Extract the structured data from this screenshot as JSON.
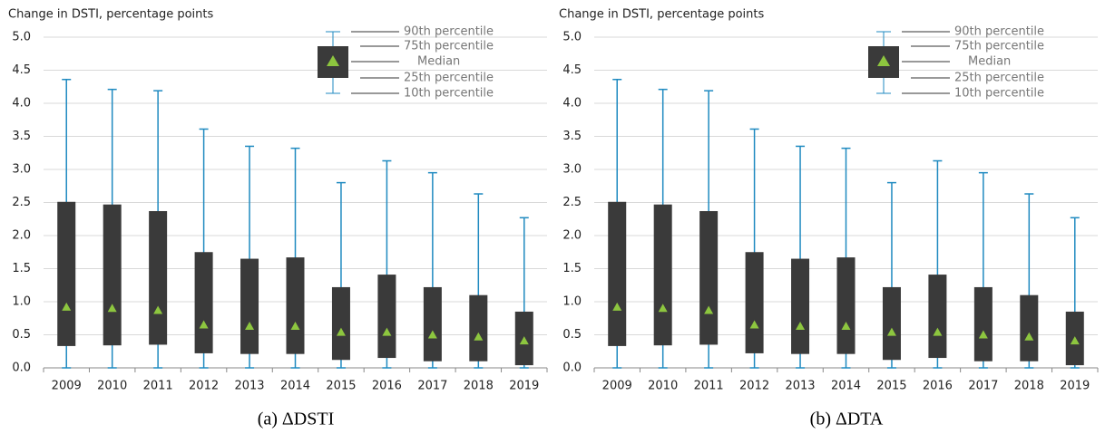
{
  "chart_data": [
    {
      "type": "box",
      "caption": "(a) ΔDSTI",
      "ylabel": "Change in DSTI, percentage points",
      "categories": [
        "2009",
        "2010",
        "2011",
        "2012",
        "2013",
        "2014",
        "2015",
        "2016",
        "2017",
        "2018",
        "2019"
      ],
      "p10": [
        0,
        0,
        0,
        0,
        0,
        0,
        0,
        0,
        0,
        0,
        0
      ],
      "p25": [
        0.33,
        0.34,
        0.35,
        0.22,
        0.21,
        0.21,
        0.12,
        0.15,
        0.1,
        0.1,
        0.04
      ],
      "median": [
        0.92,
        0.9,
        0.87,
        0.65,
        0.63,
        0.63,
        0.54,
        0.54,
        0.5,
        0.47,
        0.41
      ],
      "p75": [
        2.51,
        2.47,
        2.37,
        1.75,
        1.65,
        1.67,
        1.22,
        1.41,
        1.22,
        1.1,
        0.85
      ],
      "p90": [
        4.36,
        4.21,
        4.19,
        3.61,
        3.35,
        3.32,
        2.8,
        3.13,
        2.95,
        2.63,
        2.27
      ],
      "ylim": [
        0,
        5
      ],
      "yticks": [
        {
          "value": 0,
          "label": "0.0"
        },
        {
          "value": 0.5,
          "label": "0.5"
        },
        {
          "value": 1,
          "label": "1.0"
        },
        {
          "value": 1.5,
          "label": "1.5"
        },
        {
          "value": 2,
          "label": "2.0"
        },
        {
          "value": 2.5,
          "label": "2.5"
        },
        {
          "value": 3,
          "label": "3.0"
        },
        {
          "value": 3.5,
          "label": "3.5"
        },
        {
          "value": 4,
          "label": "4.0"
        },
        {
          "value": 4.5,
          "label": "4.5"
        },
        {
          "value": 5,
          "label": "5.0"
        }
      ],
      "grid": true,
      "box_color": "#3a3a3a",
      "whisker_color": "#1f8ac0",
      "median_color": "#8dc63f",
      "legend": [
        "90th percentile",
        "75th percentile",
        "Median",
        "25th percentile",
        "10th percentile"
      ]
    },
    {
      "type": "box",
      "caption": "(b) ΔDTA",
      "ylabel": "Change in DSTI, percentage points",
      "categories": [
        "2009",
        "2010",
        "2011",
        "2012",
        "2013",
        "2014",
        "2015",
        "2016",
        "2017",
        "2018",
        "2019"
      ],
      "p10": [
        0,
        0,
        0,
        0,
        0,
        0,
        0,
        0,
        0,
        0,
        0
      ],
      "p25": [
        0.33,
        0.34,
        0.35,
        0.22,
        0.21,
        0.21,
        0.12,
        0.15,
        0.1,
        0.1,
        0.04
      ],
      "median": [
        0.92,
        0.9,
        0.87,
        0.65,
        0.63,
        0.63,
        0.54,
        0.54,
        0.5,
        0.47,
        0.41
      ],
      "p75": [
        2.51,
        2.47,
        2.37,
        1.75,
        1.65,
        1.67,
        1.22,
        1.41,
        1.22,
        1.1,
        0.85
      ],
      "p90": [
        4.36,
        4.21,
        4.19,
        3.61,
        3.35,
        3.32,
        2.8,
        3.13,
        2.95,
        2.63,
        2.27
      ],
      "ylim": [
        0,
        5
      ],
      "yticks": [
        {
          "value": 0,
          "label": "0.0"
        },
        {
          "value": 0.5,
          "label": "0.5"
        },
        {
          "value": 1,
          "label": "1.0"
        },
        {
          "value": 1.5,
          "label": "1.5"
        },
        {
          "value": 2,
          "label": "2.0"
        },
        {
          "value": 2.5,
          "label": "2.5"
        },
        {
          "value": 3,
          "label": "3.0"
        },
        {
          "value": 3.5,
          "label": "3.5"
        },
        {
          "value": 4,
          "label": "4.0"
        },
        {
          "value": 4.5,
          "label": "4.5"
        },
        {
          "value": 5,
          "label": "5.0"
        }
      ],
      "grid": true,
      "box_color": "#3a3a3a",
      "whisker_color": "#1f8ac0",
      "median_color": "#8dc63f",
      "legend": [
        "90th percentile",
        "75th percentile",
        "Median",
        "25th percentile",
        "10th percentile"
      ]
    }
  ]
}
